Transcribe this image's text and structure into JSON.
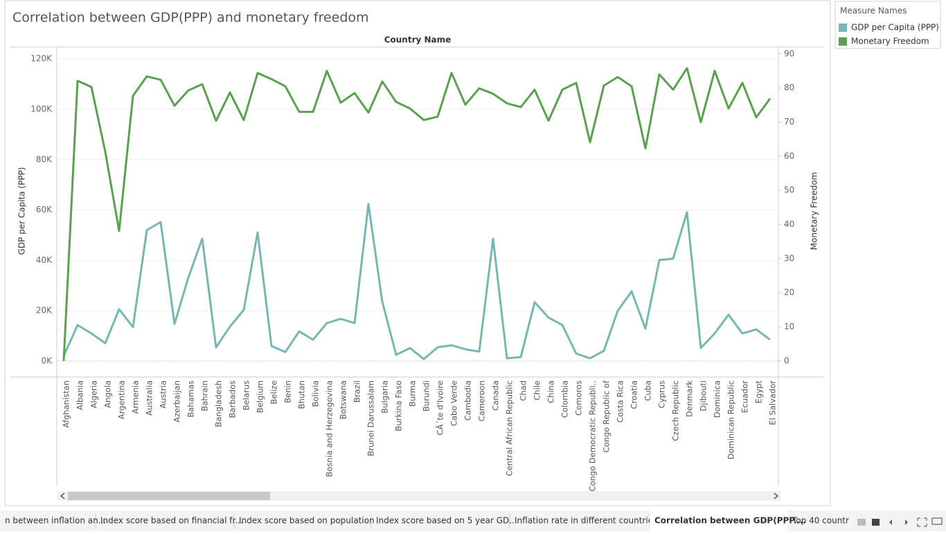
{
  "chart_data": {
    "type": "line",
    "title": "Correlation between GDP(PPP) and monetary freedom",
    "x_label": "Country Name",
    "y_label": "GDP per Capita (PPP)",
    "y2_label": "Monetary Freedom",
    "legend_title": "Measure Names",
    "legend": "right",
    "grid": true,
    "categories": [
      "Afghanistan",
      "Albania",
      "Algeria",
      "Angola",
      "Argentina",
      "Armenia",
      "Australia",
      "Austria",
      "Azerbaijan",
      "Bahamas",
      "Bahrain",
      "Bangladesh",
      "Barbados",
      "Belarus",
      "Belgium",
      "Belize",
      "Benin",
      "Bhutan",
      "Bolivia",
      "Bosnia and Herzegovina",
      "Botswana",
      "Brazil",
      "Brunei Darussalam",
      "Bulgaria",
      "Burkina Faso",
      "Burma",
      "Burundi",
      "CÃ´te d'Ivoire",
      "Cabo Verde",
      "Cambodia",
      "Cameroon",
      "Canada",
      "Central African Republic",
      "Chad",
      "Chile",
      "China",
      "Colombia",
      "Comoros",
      "Congo Democratic Republi..",
      "Congo Republic of",
      "Costa Rica",
      "Croatia",
      "Cuba",
      "Cyprus",
      "Czech Republic",
      "Denmark",
      "Djibouti",
      "Dominica",
      "Dominican Republic",
      "Ecuador",
      "Egypt",
      "El Salvador"
    ],
    "series": [
      {
        "name": "GDP per Capita (PPP)",
        "color": "#76b7b2",
        "axis": "y",
        "values": [
          2000,
          14300,
          11000,
          7100,
          20600,
          13500,
          52000,
          55200,
          14800,
          33200,
          48600,
          5500,
          13700,
          20300,
          51100,
          6000,
          3600,
          11800,
          8500,
          15100,
          16800,
          15100,
          62400,
          23600,
          2500,
          5200,
          800,
          5500,
          6300,
          4700,
          3800,
          48600,
          1100,
          1600,
          23400,
          17300,
          14300,
          3000,
          1100,
          4100,
          20000,
          27700,
          12900,
          40100,
          40700,
          59100,
          5200,
          11000,
          18400,
          11000,
          12600,
          8500
        ]
      },
      {
        "name": "Monetary Freedom",
        "color": "#59a14f",
        "axis": "y2",
        "values": [
          0,
          82.1,
          80.3,
          61.3,
          38.1,
          77.7,
          83.4,
          82.4,
          74.8,
          79.3,
          81.1,
          70.4,
          78.7,
          70.6,
          84.4,
          82.6,
          80.5,
          73,
          73,
          85,
          75.7,
          78.5,
          72.8,
          81.9,
          75.9,
          74,
          70.6,
          71.6,
          84.4,
          75.1,
          79.9,
          78.3,
          75.5,
          74.4,
          79.5,
          70.4,
          79.5,
          81.5,
          64.1,
          80.7,
          83.2,
          80.5,
          62.3,
          84,
          79.5,
          85.8,
          70,
          85,
          74,
          81.5,
          71.4,
          76.9
        ]
      }
    ],
    "ylim": [
      -6300,
      124700
    ],
    "yticks": [
      {
        "value": 0,
        "label": "0K"
      },
      {
        "value": 20000,
        "label": "20K"
      },
      {
        "value": 40000,
        "label": "40K"
      },
      {
        "value": 60000,
        "label": "60K"
      },
      {
        "value": 80000,
        "label": "80K"
      },
      {
        "value": 100000,
        "label": "100K"
      },
      {
        "value": 120000,
        "label": "120K"
      }
    ],
    "y2lim": [
      -4.7,
      92
    ],
    "y2ticks": [
      0,
      10,
      20,
      30,
      40,
      50,
      60,
      70,
      80,
      90
    ]
  },
  "tabs": [
    "n between inflation an...",
    "Index score based on financial fr...",
    "Index score based on population",
    "Index score based on 5 year GD...",
    "Inflation rate in different countries",
    "Correlation between GDP(PPP....",
    "Top 40 countr"
  ],
  "active_tab": 5
}
